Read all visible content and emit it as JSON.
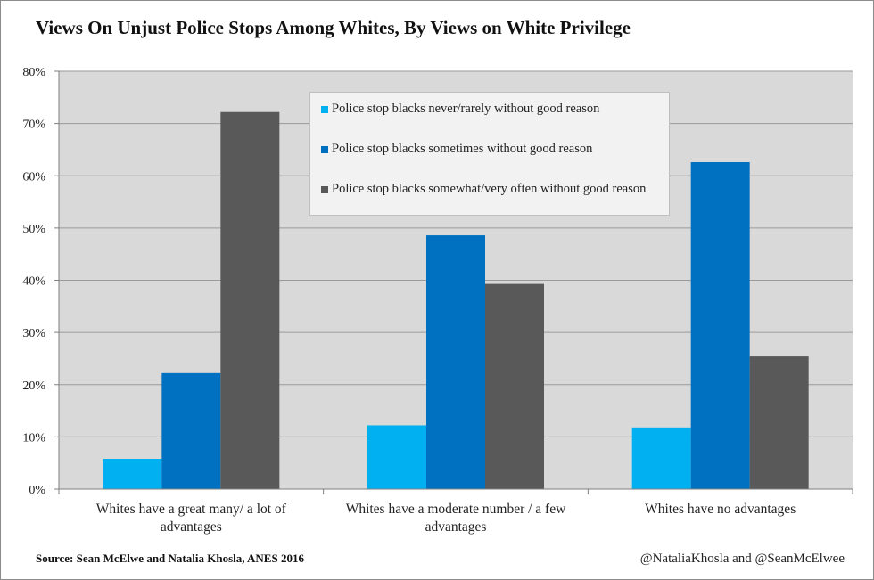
{
  "chart_data": {
    "type": "bar",
    "title": "Views On Unjust Police Stops Among Whites, By Views on White Privilege",
    "xlabel": "",
    "ylabel": "",
    "ylim": [
      0,
      80
    ],
    "y_ticks": [
      "0%",
      "10%",
      "20%",
      "30%",
      "40%",
      "50%",
      "60%",
      "70%",
      "80%"
    ],
    "grid": true,
    "legend_position": "top-center",
    "categories": [
      [
        "Whites have a great many/ a lot of",
        "advantages"
      ],
      [
        "Whites have a moderate number / a few",
        "advantages"
      ],
      [
        "Whites have no advantages"
      ]
    ],
    "series": [
      {
        "name": "Police stop blacks never/rarely without good reason",
        "color": "#00b0f0",
        "values": [
          5.8,
          12.2,
          11.8
        ]
      },
      {
        "name": "Police stop blacks sometimes without good reason",
        "color": "#0070c0",
        "values": [
          22.2,
          48.6,
          62.6
        ]
      },
      {
        "name": "Police stop blacks somewhat/very often without good reason",
        "color": "#595959",
        "values": [
          72.2,
          39.3,
          25.4
        ]
      }
    ]
  },
  "colors": {
    "plot_background": "#d9d9d9",
    "gridline": "#9a9a9a",
    "axis": "#7f7f7f"
  },
  "footer": {
    "source": "Source: Sean McElwe and Natalia Khosla, ANES 2016",
    "credit": "@NataliaKhosla and @SeanMcElwee"
  }
}
